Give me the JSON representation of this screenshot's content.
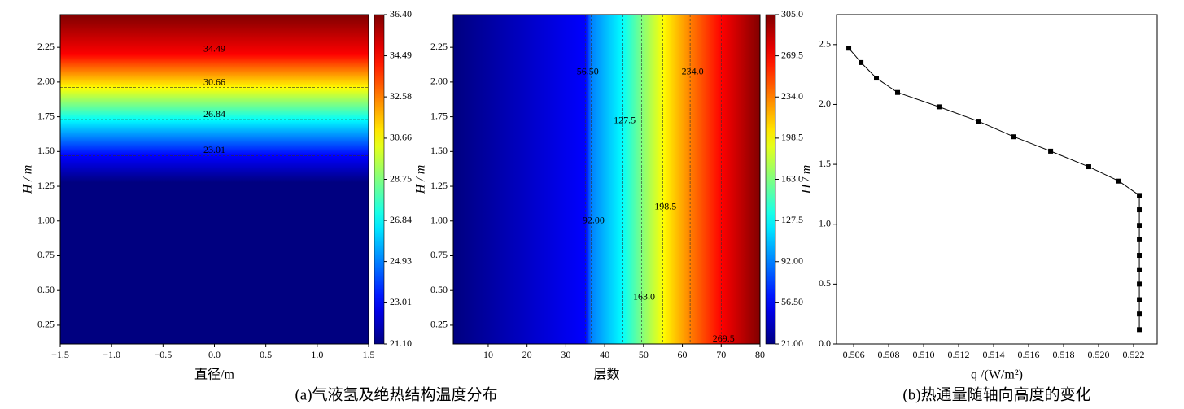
{
  "chart_data": [
    {
      "type": "contour",
      "xlabel": "直径/m",
      "ylabel": "H / m",
      "xlim": [
        -1.5,
        1.5
      ],
      "ylim": [
        0.115,
        2.485
      ],
      "xticks": [
        {
          "value": -1.5,
          "label": "−1.5"
        },
        {
          "value": -1,
          "label": "−1.0"
        },
        {
          "value": -0.5,
          "label": "−0.5"
        },
        {
          "value": 0,
          "label": "0.0"
        },
        0.5,
        {
          "value": 1,
          "label": "1.0"
        },
        1.5
      ],
      "yticks": [
        0.25,
        {
          "value": 0.5,
          "label": "0.50"
        },
        0.75,
        {
          "value": 1,
          "label": "1.00"
        },
        1.25,
        {
          "value": 1.5,
          "label": "1.50"
        },
        1.75,
        {
          "value": 2,
          "label": "2.00"
        },
        2.25
      ],
      "colorbar": {
        "lim": [
          21.1,
          36.4
        ],
        "ticks": [
          {
            "value": 21.1,
            "label": "21.10"
          },
          23.01,
          24.93,
          26.84,
          28.75,
          30.66,
          32.58,
          34.49,
          {
            "value": 36.4,
            "label": "36.40"
          }
        ]
      },
      "profile": {
        "H": [
          0.115,
          1.28,
          1.47,
          1.73,
          1.96,
          2.2,
          2.485
        ],
        "T": [
          21.1,
          21.1,
          23.01,
          26.84,
          30.66,
          34.49,
          36.4
        ]
      },
      "contour_levels": [
        34.49,
        30.66,
        26.84,
        23.01
      ]
    },
    {
      "type": "contour",
      "xlabel": "层数",
      "ylabel": "H / m",
      "xlim": [
        1,
        80
      ],
      "ylim": [
        0.115,
        2.485
      ],
      "xticks": [
        10,
        20,
        30,
        40,
        50,
        60,
        70,
        80
      ],
      "yticks": [
        0.25,
        {
          "value": 0.5,
          "label": "0.50"
        },
        0.75,
        {
          "value": 1,
          "label": "1.00"
        },
        1.25,
        {
          "value": 1.5,
          "label": "1.50"
        },
        1.75,
        {
          "value": 2,
          "label": "2.00"
        },
        2.25
      ],
      "colorbar": {
        "lim": [
          21,
          305
        ],
        "ticks": [
          {
            "value": 21,
            "label": "21.00"
          },
          {
            "value": 56.5,
            "label": "56.50"
          },
          {
            "value": 92,
            "label": "92.00"
          },
          127.5,
          {
            "value": 163,
            "label": "163.0"
          },
          198.5,
          {
            "value": 234,
            "label": "234.0"
          },
          269.5,
          {
            "value": 305,
            "label": "305.0"
          }
        ]
      },
      "profile": {
        "x": [
          1,
          35,
          36.5,
          44.5,
          49.5,
          55,
          62,
          70,
          80
        ],
        "T": [
          21,
          56.5,
          92,
          127.5,
          163,
          198.5,
          234,
          269.5,
          305
        ]
      },
      "contour_levels": [
        {
          "value": 56.5,
          "label": "56.50"
        },
        {
          "value": 92,
          "label": "92.00"
        },
        127.5,
        {
          "value": 163,
          "label": "163.0"
        },
        198.5,
        {
          "value": 234,
          "label": "234.0"
        },
        269.5
      ]
    },
    {
      "type": "line",
      "xlabel": "q /(W/m²)",
      "ylabel": "H / m",
      "color": "#000000",
      "xlim": [
        0.50502,
        0.52335
      ],
      "ylim": [
        0,
        2.75
      ],
      "xticks": [
        0.506,
        0.508,
        {
          "value": 0.51,
          "label": "0.510"
        },
        0.512,
        0.514,
        0.516,
        0.518,
        {
          "value": 0.52,
          "label": "0.520"
        },
        0.522
      ],
      "yticks": [
        {
          "value": 0,
          "label": "0.0"
        },
        0.5,
        {
          "value": 1,
          "label": "1.0"
        },
        1.5,
        {
          "value": 2,
          "label": "2.0"
        },
        2.5
      ],
      "x": [
        0.50572,
        0.50642,
        0.5073,
        0.50851,
        0.51088,
        0.51312,
        0.51516,
        0.51726,
        0.51944,
        0.52116,
        0.52233,
        0.52233,
        0.52233,
        0.52233,
        0.52233,
        0.52233,
        0.52233,
        0.52233,
        0.52233,
        0.52233
      ],
      "y": [
        2.47,
        2.35,
        2.22,
        2.1,
        1.98,
        1.86,
        1.73,
        1.61,
        1.48,
        1.36,
        1.24,
        1.12,
        0.99,
        0.87,
        0.74,
        0.62,
        0.5,
        0.37,
        0.25,
        0.12
      ]
    }
  ],
  "captions": [
    "(a)气液氢及绝热结构温度分布",
    "(b)热通量随轴向高度的变化"
  ]
}
